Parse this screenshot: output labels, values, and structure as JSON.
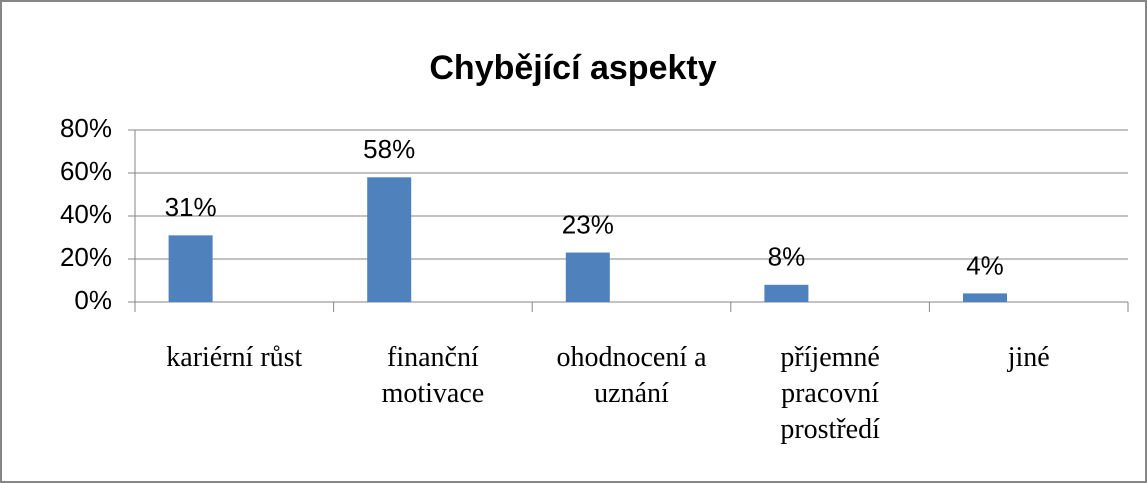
{
  "chart_data": {
    "type": "bar",
    "title": "Chybějící aspekty",
    "categories": [
      "kariérní růst",
      "finanční motivace",
      "ohodnocení a uznání",
      "příjemné pracovní prostředí",
      "jiné"
    ],
    "values": [
      31,
      58,
      23,
      8,
      4
    ],
    "value_labels": [
      "31%",
      "58%",
      "23%",
      "8%",
      "4%"
    ],
    "color": "#4f81bd",
    "ylim": [
      0,
      80
    ],
    "yticks": [
      {
        "value": 0,
        "label": "0%"
      },
      {
        "value": 20,
        "label": "20%"
      },
      {
        "value": 40,
        "label": "40%"
      },
      {
        "value": 60,
        "label": "60%"
      },
      {
        "value": 80,
        "label": "80%"
      }
    ],
    "grid": true
  }
}
